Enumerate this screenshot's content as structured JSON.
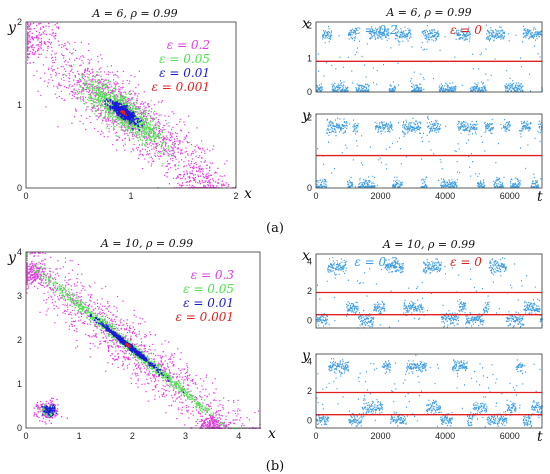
{
  "figure": {
    "labels": [
      "(a)",
      "(b)"
    ]
  },
  "colors": {
    "magenta": "#e23ce0",
    "green": "#4de24d",
    "blue": "#1a1ad6",
    "red": "#e02020",
    "cyan": "#3a9be0"
  },
  "chart_data": [
    {
      "type": "scatter",
      "title": "A = 6, ρ = 0.99",
      "xlabel": "x",
      "ylabel": "y",
      "xlim": [
        0,
        2.0
      ],
      "ylim": [
        0,
        2.0
      ],
      "xticks": [
        "0",
        "1",
        "2"
      ],
      "yticks": [
        "0",
        "1",
        "2"
      ],
      "legend_position": "top-right",
      "series": [
        {
          "name": "ε = 0.2",
          "color": "#e23ce0",
          "center": [
            0.92,
            0.92
          ],
          "spread_along": 0.55,
          "spread_across": 0.14,
          "extra_clusters": [
            {
              "x": 0.05,
              "y": 1.8
            },
            {
              "x": 1.65,
              "y": 0.08
            }
          ]
        },
        {
          "name": "ε = 0.05",
          "color": "#4de24d",
          "center": [
            0.92,
            0.92
          ],
          "spread_along": 0.25,
          "spread_across": 0.08
        },
        {
          "name": "ε = 0.01",
          "color": "#1a1ad6",
          "center": [
            0.92,
            0.92
          ],
          "spread_along": 0.08,
          "spread_across": 0.025
        },
        {
          "name": "ε = 0.001",
          "color": "#e02020",
          "center": [
            0.92,
            0.92
          ],
          "spread_along": 0.01,
          "spread_across": 0.005
        }
      ]
    },
    {
      "type": "line",
      "title": "A = 6, ρ = 0.99",
      "panel": "time-series x",
      "ylabel": "x",
      "xlim": [
        0,
        7000
      ],
      "ylim": [
        0,
        2.1
      ],
      "yticks": [
        "0",
        "1",
        "2"
      ],
      "legend_position": "top",
      "series": [
        {
          "name": "ε = 0.2",
          "color": "#3a9be0",
          "style": "switching",
          "levels": [
            0.1,
            1.75
          ]
        },
        {
          "name": "ε = 0",
          "color": "#e02020",
          "style": "constant",
          "value": 0.92
        }
      ]
    },
    {
      "type": "line",
      "title": "",
      "panel": "time-series y",
      "ylabel": "y",
      "xlabel": "t",
      "xlim": [
        0,
        7000
      ],
      "ylim": [
        0,
        2.1
      ],
      "xticks": [
        "0",
        "2000",
        "4000",
        "6000"
      ],
      "yticks": [
        "0",
        "2"
      ],
      "series": [
        {
          "name": "",
          "color": "#3a9be0",
          "style": "switching",
          "levels": [
            0.1,
            1.75
          ]
        },
        {
          "name": "",
          "color": "#e02020",
          "style": "constant",
          "value": 0.92
        }
      ]
    },
    {
      "type": "scatter",
      "title": "A = 10, ρ = 0.99",
      "xlabel": "x",
      "ylabel": "y",
      "xlim": [
        0,
        4.4
      ],
      "ylim": [
        0,
        4.0
      ],
      "xticks": [
        "0",
        "1",
        "2",
        "3",
        "4"
      ],
      "yticks": [
        "0",
        "1",
        "2",
        "3",
        "4"
      ],
      "legend_position": "top-right",
      "series": [
        {
          "name": "ε = 0.3",
          "color": "#e23ce0",
          "center": [
            1.9,
            1.9
          ],
          "spread_along": 1.9,
          "spread_across": 0.25,
          "extra_clusters": [
            {
              "x": 0.4,
              "y": 0.4
            },
            {
              "x": 0.1,
              "y": 3.5
            },
            {
              "x": 3.5,
              "y": 0.1
            }
          ]
        },
        {
          "name": "ε = 0.05",
          "color": "#4de24d",
          "center": [
            1.9,
            1.9
          ],
          "spread_along": 1.2,
          "spread_across": 0.05,
          "extra_clusters": [
            {
              "x": 0.4,
              "y": 0.4
            }
          ]
        },
        {
          "name": "ε = 0.01",
          "color": "#1a1ad6",
          "center": [
            1.9,
            1.9
          ],
          "spread_along": 0.35,
          "spread_across": 0.02,
          "extra_clusters": [
            {
              "x": 0.42,
              "y": 0.42
            }
          ]
        },
        {
          "name": "ε = 0.001",
          "color": "#e02020",
          "center": [
            1.9,
            1.9
          ],
          "spread_along": 0.02,
          "spread_across": 0.005
        }
      ]
    },
    {
      "type": "line",
      "title": "A = 10, ρ = 0.99",
      "panel": "time-series x",
      "ylabel": "x",
      "xlim": [
        0,
        7000
      ],
      "ylim": [
        -0.5,
        4.5
      ],
      "yticks": [
        "0",
        "2",
        "4"
      ],
      "legend_position": "top",
      "series": [
        {
          "name": "ε = 0.3",
          "color": "#3a9be0",
          "style": "switching",
          "levels": [
            0.1,
            0.9,
            3.7
          ]
        },
        {
          "name": "ε = 0",
          "color": "#e02020",
          "style": "constant",
          "values": [
            0.4,
            1.9
          ]
        }
      ]
    },
    {
      "type": "line",
      "title": "",
      "panel": "time-series y",
      "ylabel": "y",
      "xlabel": "t",
      "xlim": [
        0,
        7000
      ],
      "ylim": [
        -0.5,
        4.5
      ],
      "xticks": [
        "0",
        "2000",
        "4000",
        "6000"
      ],
      "yticks": [
        "0",
        "2",
        "4"
      ],
      "series": [
        {
          "name": "",
          "color": "#3a9be0",
          "style": "switching",
          "levels": [
            0.1,
            0.9,
            3.7
          ]
        },
        {
          "name": "",
          "color": "#e02020",
          "style": "constant",
          "values": [
            0.4,
            1.9
          ]
        }
      ]
    }
  ]
}
